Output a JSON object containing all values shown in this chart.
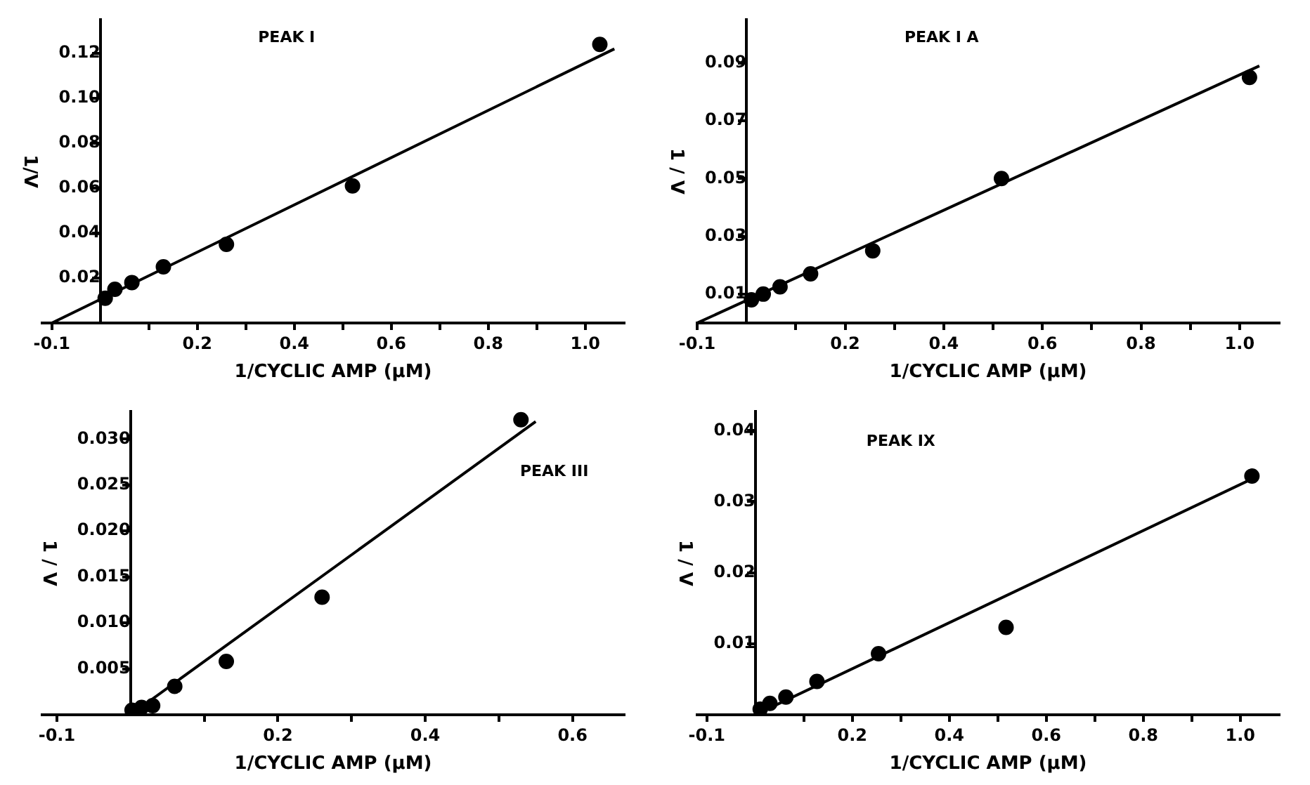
{
  "chart_data": [
    {
      "type": "scatter",
      "title": "PEAK I",
      "xlabel": "1/CYCLIC AMP (μM)",
      "ylabel": "1/V",
      "marker": "circle",
      "legend": false,
      "grid": false,
      "xlim": [
        -0.12,
        1.08
      ],
      "xticks": [
        {
          "value": -0.1,
          "label": "-0.1"
        },
        {
          "value": 0.1,
          "label": null
        },
        0.2,
        {
          "value": 0.3,
          "label": null
        },
        0.4,
        {
          "value": 0.5,
          "label": null
        },
        0.6,
        {
          "value": 0.7,
          "label": null
        },
        0.8,
        {
          "value": 0.9,
          "label": null
        },
        {
          "value": 1.0,
          "label": "1.0"
        }
      ],
      "ylim": [
        0,
        0.135
      ],
      "yticks": [
        0.02,
        0.04,
        0.06,
        0.08,
        {
          "value": 0.1,
          "label": "0.10"
        },
        0.12
      ],
      "series": [
        {
          "type": "scatter",
          "color": "#000000",
          "x": [
            0.01,
            0.03,
            0.065,
            0.13,
            0.26,
            0.52,
            1.03
          ],
          "values": [
            0.011,
            0.015,
            0.018,
            0.025,
            0.035,
            0.061,
            0.124
          ]
        },
        {
          "type": "line",
          "color": "#000000",
          "marker": "none",
          "x": [
            -0.1,
            1.06
          ],
          "values": [
            0,
            0.122
          ]
        }
      ]
    },
    {
      "type": "scatter",
      "title": "PEAK I A",
      "xlabel": "1/CYCLIC AMP (μM)",
      "ylabel": "1 / V",
      "marker": "circle",
      "legend": false,
      "grid": false,
      "xlim": [
        -0.1,
        1.08
      ],
      "xticks": [
        {
          "value": -0.1,
          "label": "-0.1"
        },
        {
          "value": 0.1,
          "label": null
        },
        0.2,
        {
          "value": 0.3,
          "label": null
        },
        0.4,
        {
          "value": 0.5,
          "label": null
        },
        0.6,
        {
          "value": 0.7,
          "label": null
        },
        0.8,
        {
          "value": 0.9,
          "label": null
        },
        {
          "value": 1.0,
          "label": "1.0"
        }
      ],
      "ylim": [
        0,
        0.105
      ],
      "yticks": [
        0.01,
        0.03,
        0.05,
        0.07,
        0.09
      ],
      "series": [
        {
          "type": "scatter",
          "color": "#000000",
          "x": [
            0.01,
            0.034,
            0.068,
            0.13,
            0.256,
            0.517,
            1.02
          ],
          "values": [
            0.008,
            0.01,
            0.0125,
            0.017,
            0.025,
            0.05,
            0.085
          ]
        },
        {
          "type": "line",
          "color": "#000000",
          "marker": "none",
          "x": [
            -0.1,
            1.04
          ],
          "values": [
            0,
            0.089
          ]
        }
      ]
    },
    {
      "type": "scatter",
      "title": "PEAK III",
      "xlabel": "1/CYCLIC AMP (μM)",
      "ylabel": "1 / V",
      "marker": "circle",
      "legend": false,
      "grid": false,
      "xlim": [
        -0.12,
        0.67
      ],
      "xticks": [
        {
          "value": -0.1,
          "label": "-0.1"
        },
        {
          "value": 0.1,
          "label": null
        },
        0.2,
        {
          "value": 0.3,
          "label": null
        },
        0.4,
        {
          "value": 0.5,
          "label": null
        },
        0.6
      ],
      "ylim": [
        0,
        0.033
      ],
      "yticks": [
        0.005,
        {
          "value": 0.01,
          "label": "0.010"
        },
        {
          "value": 0.015,
          "label": "0.015"
        },
        {
          "value": 0.02,
          "label": "0.020"
        },
        {
          "value": 0.025,
          "label": "0.025"
        },
        {
          "value": 0.03,
          "label": "0.030"
        }
      ],
      "series": [
        {
          "type": "scatter",
          "color": "#000000",
          "x": [
            0.002,
            0.015,
            0.03,
            0.06,
            0.13,
            0.26,
            0.53
          ],
          "values": [
            0.0005,
            0.0008,
            0.001,
            0.0031,
            0.0058,
            0.0128,
            0.0321
          ]
        },
        {
          "type": "line",
          "color": "#000000",
          "marker": "none",
          "x": [
            0,
            0.55
          ],
          "values": [
            0,
            0.0319
          ]
        }
      ]
    },
    {
      "type": "scatter",
      "title": "PEAK IX",
      "xlabel": "1/CYCLIC AMP (μM)",
      "ylabel": "1 / V",
      "marker": "circle",
      "legend": false,
      "grid": false,
      "xlim": [
        -0.12,
        1.08
      ],
      "xticks": [
        {
          "value": -0.1,
          "label": "-0.1"
        },
        {
          "value": 0.1,
          "label": null
        },
        0.2,
        {
          "value": 0.3,
          "label": null
        },
        0.4,
        {
          "value": 0.5,
          "label": null
        },
        0.6,
        {
          "value": 0.7,
          "label": null
        },
        0.8,
        {
          "value": 0.9,
          "label": null
        },
        {
          "value": 1.0,
          "label": "1.0"
        }
      ],
      "ylim": [
        0,
        0.0427
      ],
      "yticks": [
        0.01,
        0.02,
        0.03,
        0.04
      ],
      "series": [
        {
          "type": "scatter",
          "color": "#000000",
          "x": [
            0.01,
            0.03,
            0.063,
            0.127,
            0.254,
            0.517,
            1.024
          ],
          "values": [
            0.0008,
            0.0016,
            0.0025,
            0.0047,
            0.0086,
            0.0123,
            0.0336
          ]
        },
        {
          "type": "line",
          "color": "#000000",
          "marker": "none",
          "x": [
            0,
            1.024
          ],
          "values": [
            0,
            0.0332
          ]
        }
      ]
    }
  ]
}
